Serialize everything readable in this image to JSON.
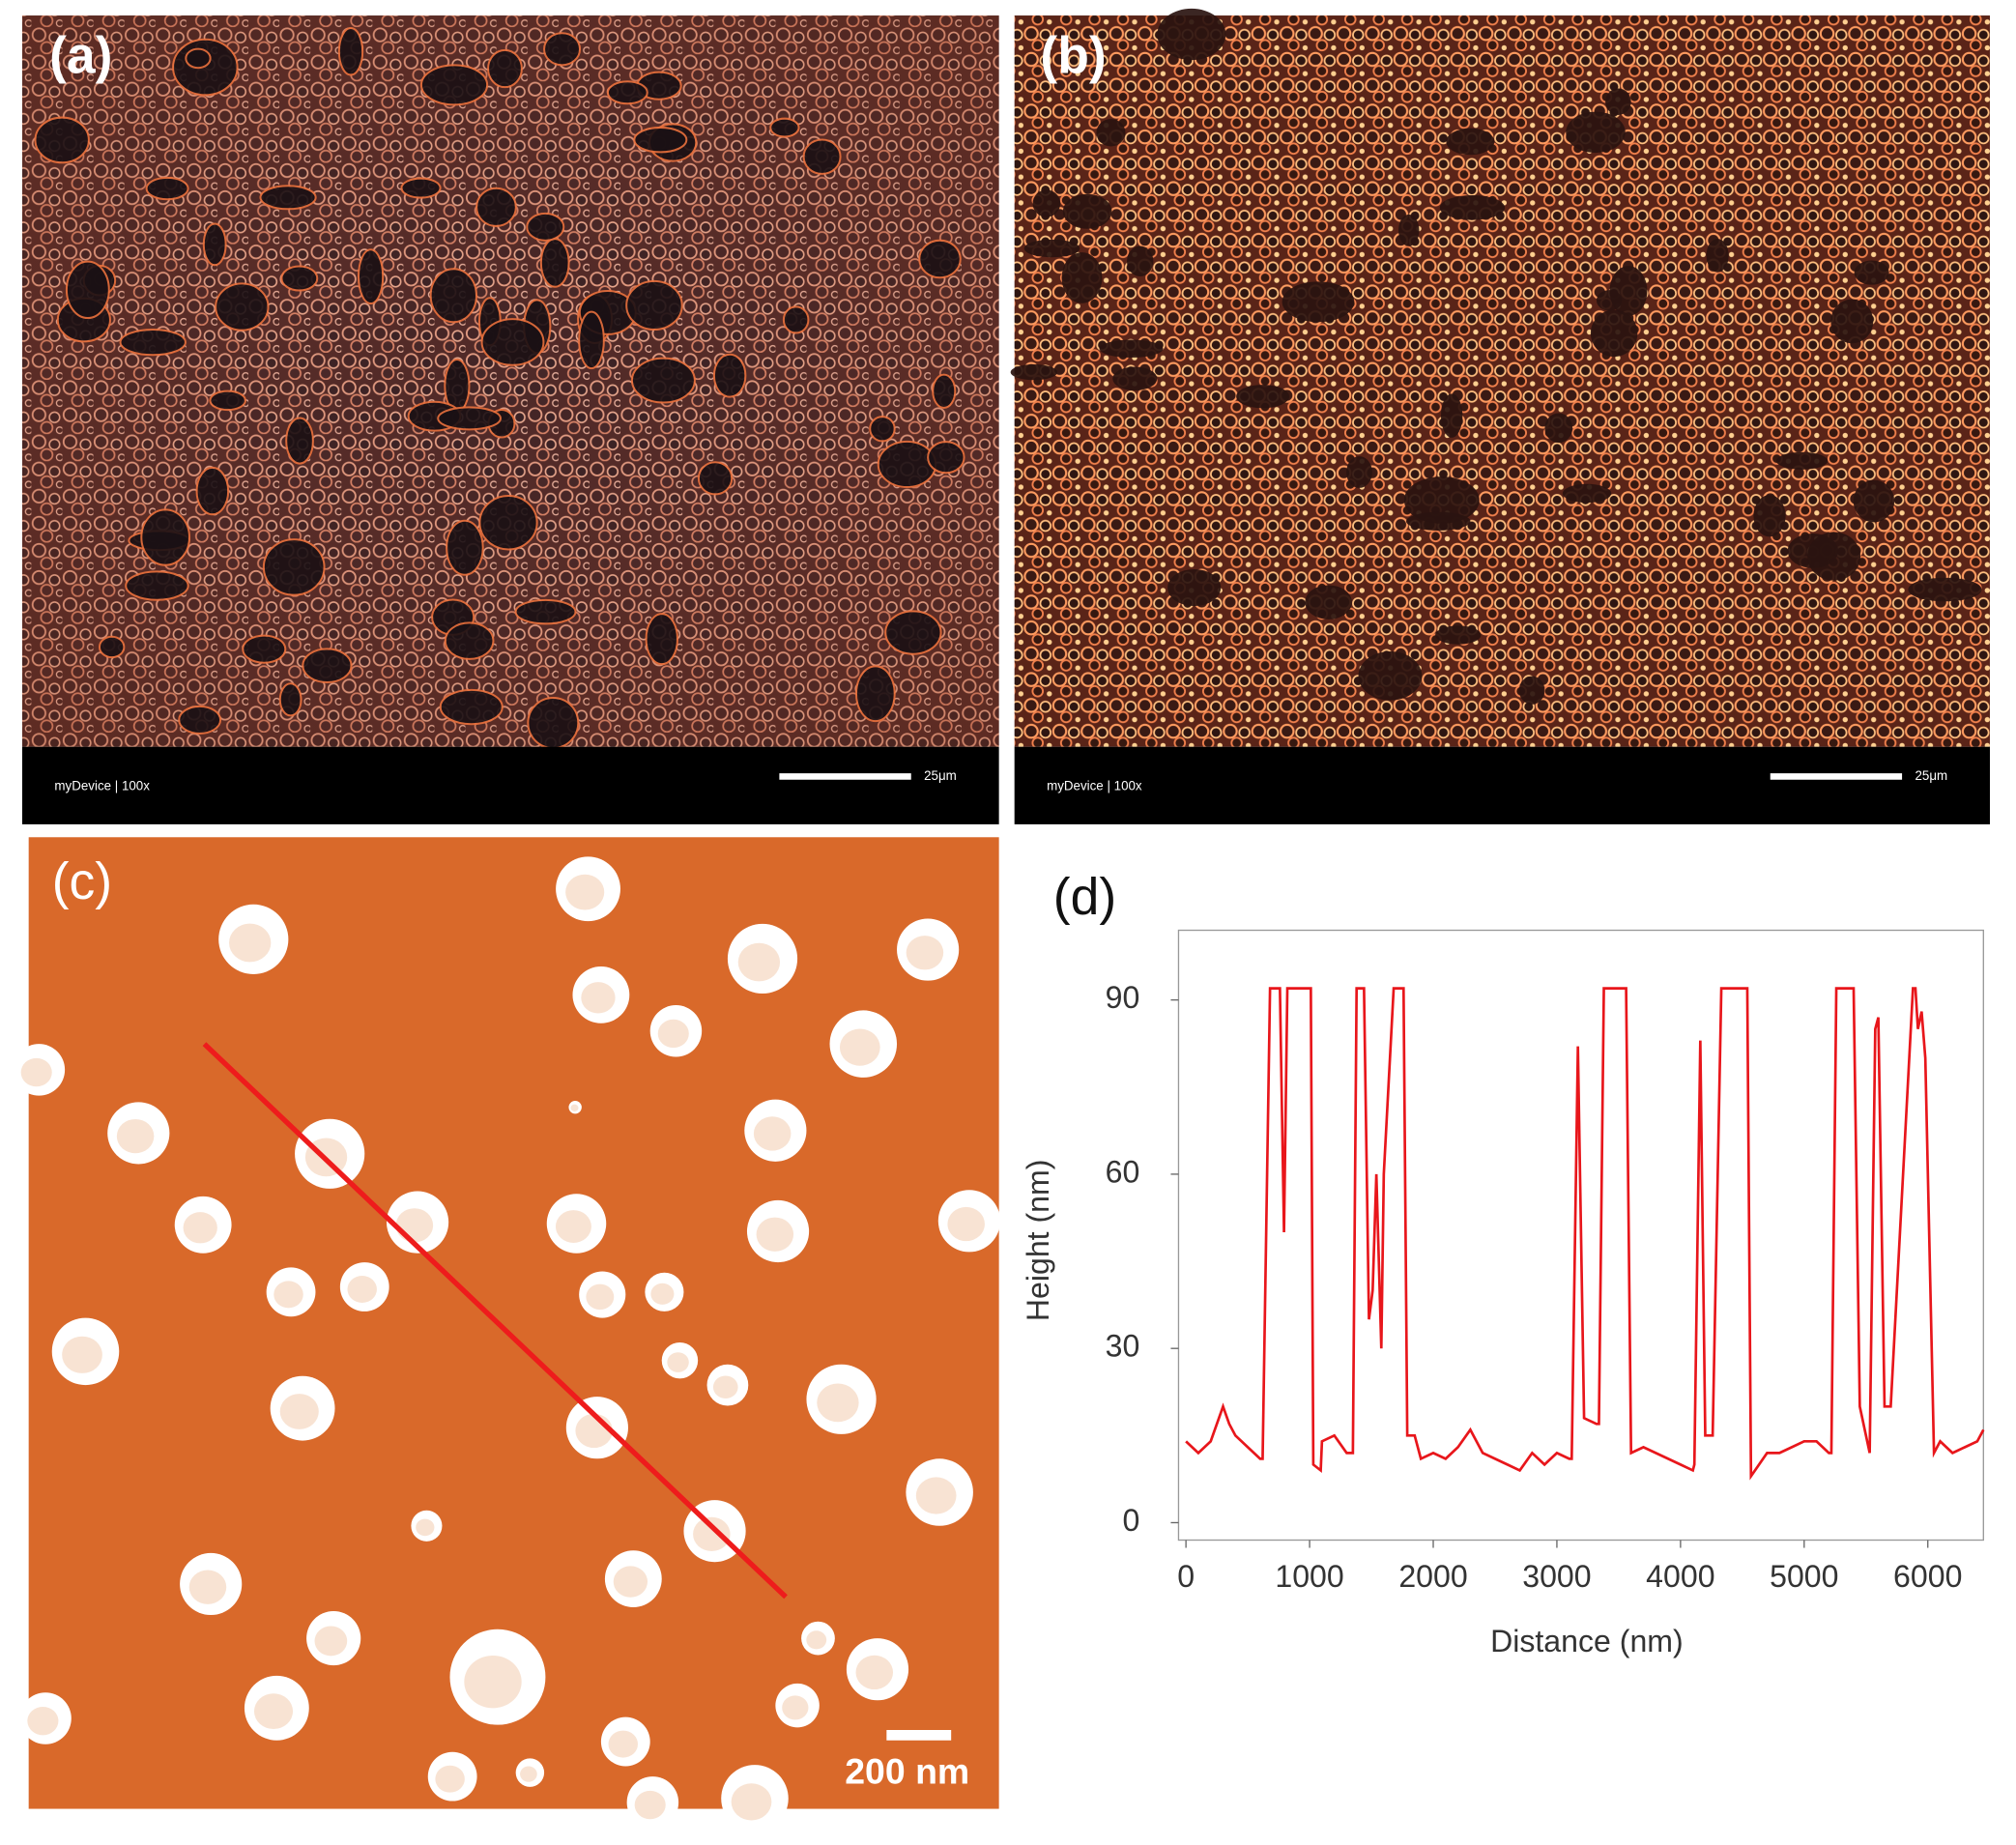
{
  "panels": [
    {
      "label": "(a)",
      "caption": "myDevice | 100x",
      "scale_bar": "25μm"
    },
    {
      "label": "(b)",
      "caption": "myDevice | 100x",
      "scale_bar": "25μm"
    },
    {
      "label": "(c)",
      "scale_bar": "200 nm"
    }
  ],
  "chart_data": {
    "type": "line",
    "label": "(d)",
    "x_label": "Distance (nm)",
    "y_label": "Height (nm)",
    "x": [
      0,
      100,
      200,
      300,
      350,
      400,
      500,
      600,
      620,
      680,
      760,
      793,
      820,
      1010,
      1030,
      1090,
      1100,
      1200,
      1300,
      1350,
      1380,
      1440,
      1480,
      1510,
      1540,
      1580,
      1600,
      1680,
      1760,
      1790,
      1850,
      1900,
      2000,
      2100,
      2200,
      2300,
      2400,
      2500,
      2600,
      2700,
      2800,
      2900,
      3000,
      3100,
      3120,
      3170,
      3220,
      3320,
      3340,
      3380,
      3560,
      3600,
      3700,
      3800,
      3900,
      4000,
      4100,
      4112,
      4160,
      4200,
      4260,
      4330,
      4540,
      4570,
      4700,
      4800,
      4900,
      5000,
      5100,
      5200,
      5220,
      5260,
      5400,
      5450,
      5530,
      5575,
      5600,
      5650,
      5700,
      5880,
      5900,
      5920,
      5950,
      5980,
      6050,
      6100,
      6200,
      6300,
      6400,
      6450
    ],
    "series": [
      {
        "color": "#e8161b",
        "values": [
          14,
          12,
          14,
          20,
          17,
          15,
          13,
          11,
          11,
          92,
          92,
          50,
          92,
          92,
          10,
          9,
          14,
          15,
          12,
          12,
          92,
          92,
          35,
          40,
          60,
          30,
          60,
          92,
          92,
          15,
          15,
          11,
          12,
          11,
          13,
          16,
          12,
          11,
          10,
          9,
          12,
          10,
          12,
          11,
          11,
          82,
          18,
          17,
          17,
          92,
          92,
          12,
          13,
          12,
          11,
          10,
          9,
          10,
          83,
          15,
          15,
          92,
          92,
          8,
          12,
          12,
          13,
          14,
          14,
          12,
          12,
          92,
          92,
          20,
          12,
          85,
          87,
          20,
          20,
          92,
          92,
          85,
          88,
          80,
          12,
          14,
          12,
          13,
          14,
          16
        ]
      }
    ],
    "xlim": [
      -60,
      6450
    ],
    "ylim": [
      -3,
      102
    ],
    "xticks": [
      0,
      1000,
      2000,
      3000,
      4000,
      5000,
      6000
    ],
    "yticks": [
      0,
      30,
      60,
      90
    ]
  }
}
